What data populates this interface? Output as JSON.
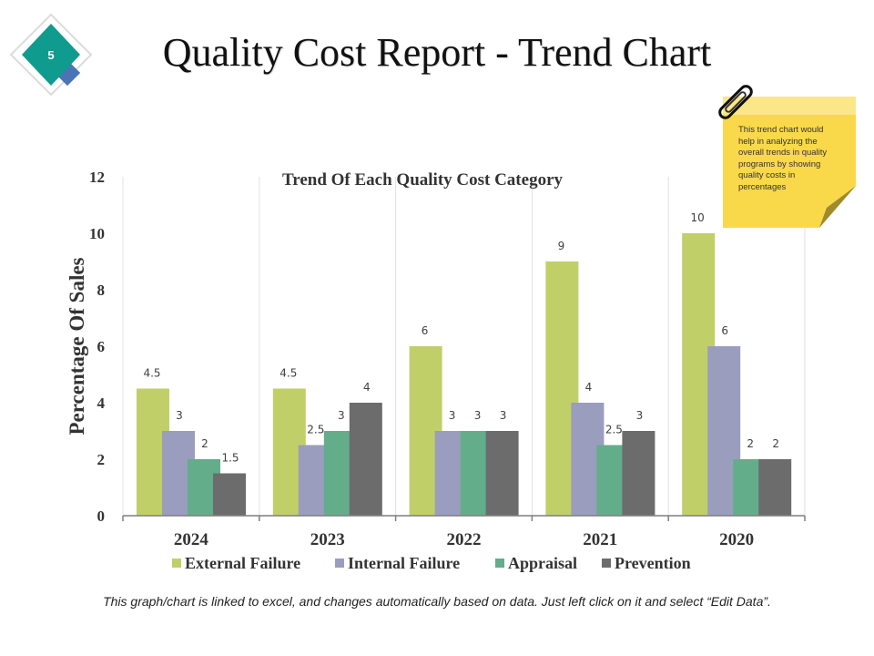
{
  "slide": {
    "number": "5",
    "title": "Quality Cost Report - Trend Chart"
  },
  "colors": {
    "badge_teal": "#0f9b8e",
    "badge_blue": "#4a74b4",
    "note_yellow": "#f9d84a",
    "note_fold": "#a08a2e"
  },
  "sticky_note": {
    "text": "This  trend chart would  help in analyzing the overall trends in quality programs by showing quality costs in percentages"
  },
  "footer": {
    "text": "This graph/chart is linked to excel, and changes automatically based on data. Just left click on it and select “Edit Data”."
  },
  "chart_data": {
    "type": "bar",
    "title": "Trend Of Each Quality Cost Category",
    "xlabel": "",
    "ylabel": "Percentage Of Sales",
    "ylim": [
      0,
      12
    ],
    "yticks": [
      0,
      2,
      4,
      6,
      8,
      10,
      12
    ],
    "categories": [
      "2024",
      "2023",
      "2022",
      "2021",
      "2020"
    ],
    "legend_position": "bottom",
    "series": [
      {
        "name": "External Failure",
        "color": "#c1cf68",
        "labels": [
          "4.5",
          "4.5",
          "6",
          "9",
          "10"
        ],
        "values": [
          4.5,
          4.5,
          6,
          9,
          10
        ]
      },
      {
        "name": "Internal Failure",
        "color": "#9a9dbd",
        "labels": [
          "3",
          "2.5",
          "3",
          "4",
          "6"
        ],
        "values": [
          3,
          2.5,
          3,
          4,
          6
        ]
      },
      {
        "name": "Appraisal",
        "color": "#63ad8b",
        "labels": [
          "2",
          "3",
          "3",
          "2.5",
          "2"
        ],
        "values": [
          2,
          3,
          3,
          2.5,
          2
        ]
      },
      {
        "name": "Prevention",
        "color": "#6c6c6c",
        "labels": [
          "1.5",
          "4",
          "3",
          "3",
          "2"
        ],
        "values": [
          1.5,
          4,
          3,
          3,
          2
        ]
      }
    ]
  }
}
